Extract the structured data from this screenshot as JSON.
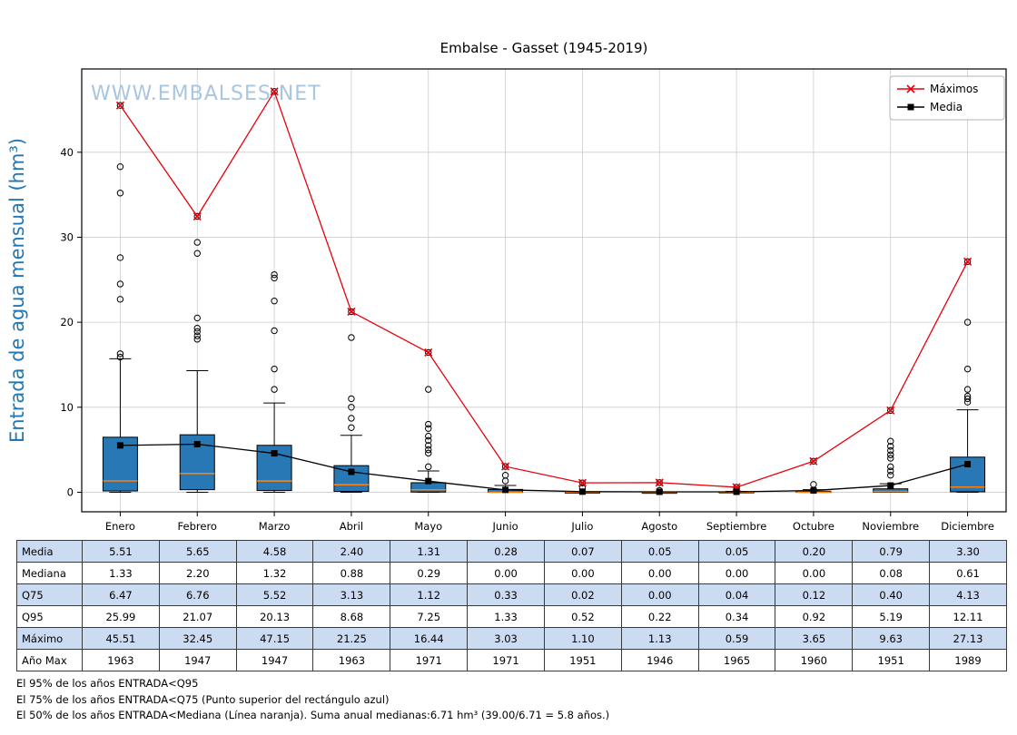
{
  "title": "Embalse - Gasset (1945-2019)",
  "watermark": "WWW.EMBALSES.NET",
  "footer_lines": [
    "El 95% de los años ENTRADA<Q95",
    "El 75% de los años ENTRADA<Q75 (Punto superior del rectángulo azul)",
    "El 50% de los años ENTRADA<Mediana (Línea naranja). Suma anual medianas:6.71 hm³ (39.00/6.71 = 5.8 años.)"
  ],
  "chart_data": {
    "type": "boxplot",
    "title": "Embalse - Gasset (1945-2019)",
    "ylabel": "Entrada de agua mensual (hm³)",
    "ylim": [
      -2.3,
      49.8
    ],
    "yticks": [
      0,
      10,
      20,
      30,
      40
    ],
    "grid": true,
    "colors": {
      "box_fill": "#2878b5",
      "median": "#ff7f0e",
      "maximos_line": "#e8000b",
      "media_line": "#000000",
      "grid": "#cccccc",
      "watermark": "#a9c6e0",
      "ylabel": "#1f77b4"
    },
    "legend": {
      "position": "top-right",
      "entries": [
        {
          "label": "Máximos",
          "color": "#e8000b",
          "marker": "x"
        },
        {
          "label": "Media",
          "color": "#000000",
          "marker": "square"
        }
      ]
    },
    "categories": [
      "Enero",
      "Febrero",
      "Marzo",
      "Abril",
      "Mayo",
      "Junio",
      "Julio",
      "Agosto",
      "Septiembre",
      "Octubre",
      "Noviembre",
      "Diciembre"
    ],
    "series": [
      {
        "name": "Máximos",
        "marker": "x",
        "color": "#e8000b",
        "values": [
          45.51,
          32.45,
          47.15,
          21.25,
          16.44,
          3.03,
          1.1,
          1.13,
          0.59,
          3.65,
          9.63,
          27.13
        ]
      },
      {
        "name": "Media",
        "marker": "square",
        "color": "#000000",
        "values": [
          5.51,
          5.65,
          4.58,
          2.4,
          1.31,
          0.28,
          0.07,
          0.05,
          0.05,
          0.2,
          0.79,
          3.3
        ]
      }
    ],
    "boxes": [
      {
        "month": "Enero",
        "q1": 0.15,
        "median": 1.33,
        "q3": 6.47,
        "whisker_low": 0.0,
        "whisker_high": 15.7,
        "outliers": [
          15.9,
          16.3,
          22.7,
          24.5,
          27.6,
          35.2,
          38.3,
          45.51
        ]
      },
      {
        "month": "Febrero",
        "q1": 0.3,
        "median": 2.2,
        "q3": 6.76,
        "whisker_low": 0.0,
        "whisker_high": 14.3,
        "outliers": [
          18.0,
          18.4,
          18.9,
          19.3,
          20.5,
          28.1,
          29.4,
          32.45
        ]
      },
      {
        "month": "Marzo",
        "q1": 0.2,
        "median": 1.32,
        "q3": 5.52,
        "whisker_low": 0.0,
        "whisker_high": 10.5,
        "outliers": [
          12.1,
          14.5,
          19.0,
          22.5,
          25.2,
          25.6,
          47.15
        ]
      },
      {
        "month": "Abril",
        "q1": 0.1,
        "median": 0.88,
        "q3": 3.13,
        "whisker_low": 0.0,
        "whisker_high": 6.7,
        "outliers": [
          7.6,
          8.7,
          10.0,
          11.0,
          18.2,
          21.25
        ]
      },
      {
        "month": "Mayo",
        "q1": 0.02,
        "median": 0.29,
        "q3": 1.12,
        "whisker_low": 0.0,
        "whisker_high": 2.5,
        "outliers": [
          3.0,
          4.6,
          5.0,
          5.5,
          6.1,
          6.6,
          7.5,
          8.0,
          12.1,
          16.44
        ]
      },
      {
        "month": "Junio",
        "q1": 0.0,
        "median": 0.0,
        "q3": 0.33,
        "whisker_low": 0.0,
        "whisker_high": 0.8,
        "outliers": [
          1.33,
          2.0,
          3.03
        ]
      },
      {
        "month": "Julio",
        "q1": 0.0,
        "median": 0.0,
        "q3": 0.02,
        "whisker_low": 0.0,
        "whisker_high": 0.05,
        "outliers": [
          0.52,
          1.1
        ]
      },
      {
        "month": "Agosto",
        "q1": 0.0,
        "median": 0.0,
        "q3": 0.0,
        "whisker_low": 0.0,
        "whisker_high": 0.02,
        "outliers": [
          0.22,
          1.13
        ]
      },
      {
        "month": "Septiembre",
        "q1": 0.0,
        "median": 0.0,
        "q3": 0.04,
        "whisker_low": 0.0,
        "whisker_high": 0.1,
        "outliers": [
          0.34,
          0.59
        ]
      },
      {
        "month": "Octubre",
        "q1": 0.0,
        "median": 0.0,
        "q3": 0.12,
        "whisker_low": 0.0,
        "whisker_high": 0.3,
        "outliers": [
          0.92,
          3.65
        ]
      },
      {
        "month": "Noviembre",
        "q1": 0.0,
        "median": 0.08,
        "q3": 0.4,
        "whisker_low": 0.0,
        "whisker_high": 1.0,
        "outliers": [
          2.0,
          2.5,
          3.0,
          4.0,
          4.4,
          4.9,
          5.4,
          6.0,
          9.63
        ]
      },
      {
        "month": "Diciembre",
        "q1": 0.05,
        "median": 0.61,
        "q3": 4.13,
        "whisker_low": 0.0,
        "whisker_high": 9.7,
        "outliers": [
          10.6,
          11.0,
          11.3,
          12.1,
          14.5,
          20.0,
          27.13
        ]
      }
    ],
    "table": {
      "row_labels": [
        "Media",
        "Mediana",
        "Q75",
        "Q95",
        "Máximo",
        "Año Max"
      ],
      "rows": [
        [
          "5.51",
          "5.65",
          "4.58",
          "2.40",
          "1.31",
          "0.28",
          "0.07",
          "0.05",
          "0.05",
          "0.20",
          "0.79",
          "3.30"
        ],
        [
          "1.33",
          "2.20",
          "1.32",
          "0.88",
          "0.29",
          "0.00",
          "0.00",
          "0.00",
          "0.00",
          "0.00",
          "0.08",
          "0.61"
        ],
        [
          "6.47",
          "6.76",
          "5.52",
          "3.13",
          "1.12",
          "0.33",
          "0.02",
          "0.00",
          "0.04",
          "0.12",
          "0.40",
          "4.13"
        ],
        [
          "25.99",
          "21.07",
          "20.13",
          "8.68",
          "7.25",
          "1.33",
          "0.52",
          "0.22",
          "0.34",
          "0.92",
          "5.19",
          "12.11"
        ],
        [
          "45.51",
          "32.45",
          "47.15",
          "21.25",
          "16.44",
          "3.03",
          "1.10",
          "1.13",
          "0.59",
          "3.65",
          "9.63",
          "27.13"
        ],
        [
          "1963",
          "1947",
          "1947",
          "1963",
          "1971",
          "1971",
          "1951",
          "1946",
          "1965",
          "1960",
          "1951",
          "1989"
        ]
      ]
    }
  }
}
